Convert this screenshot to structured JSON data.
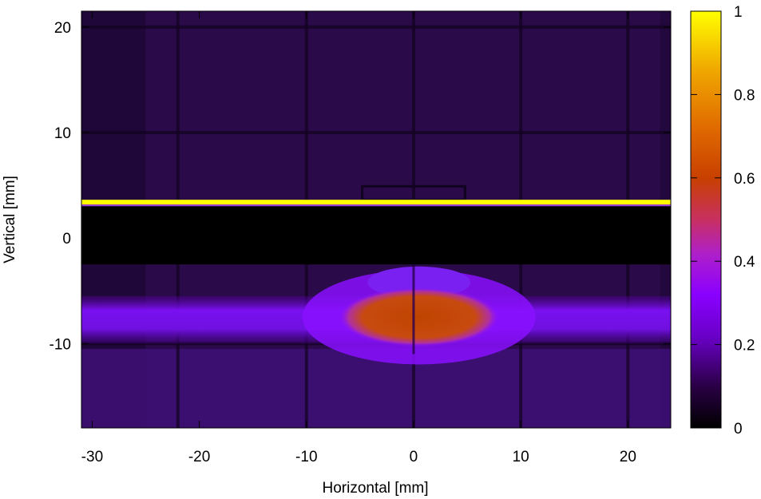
{
  "chart_data": {
    "type": "heatmap",
    "title": "",
    "xlabel": "Horizontal [mm]",
    "ylabel": "Vertical [mm]",
    "xlim": [
      -31,
      24
    ],
    "ylim": [
      -18,
      21.5
    ],
    "xticks": [
      -30,
      -20,
      -10,
      0,
      10,
      20
    ],
    "xtick_labels": [
      "-30",
      "-20",
      "-10",
      "0",
      "10",
      "20"
    ],
    "yticks": [
      -10,
      0,
      10,
      20
    ],
    "ytick_labels": [
      "-10",
      "0",
      "10",
      "20"
    ],
    "colorbar": {
      "range": [
        0,
        1
      ],
      "ticks": [
        0,
        0.2,
        0.4,
        0.6,
        0.8,
        1
      ],
      "tick_labels": [
        "0",
        "0.2",
        "0.4",
        "0.6",
        "0.8",
        "1"
      ],
      "colormap": [
        "#000000",
        "#3b0066",
        "#8a00ff",
        "#c030c0",
        "#c83a00",
        "#e07000",
        "#f8c000",
        "#ffff00"
      ]
    },
    "features": {
      "background_level": 0.12,
      "dark_band_y": [
        -2.5,
        3.0
      ],
      "bright_line_y": 3.4,
      "bright_line_level": 1.0,
      "beam_band_y": [
        -10.0,
        -5.5
      ],
      "beam_band_level": 0.22,
      "core_center": [
        0.5,
        -7.5
      ],
      "core_half_width_x": 7.5,
      "core_half_height_y": 2.8,
      "core_level": 0.6,
      "grid_lines_x": [
        -22,
        -10,
        0,
        10,
        20
      ],
      "grid_lines_y": [
        20,
        10,
        -10
      ]
    }
  }
}
